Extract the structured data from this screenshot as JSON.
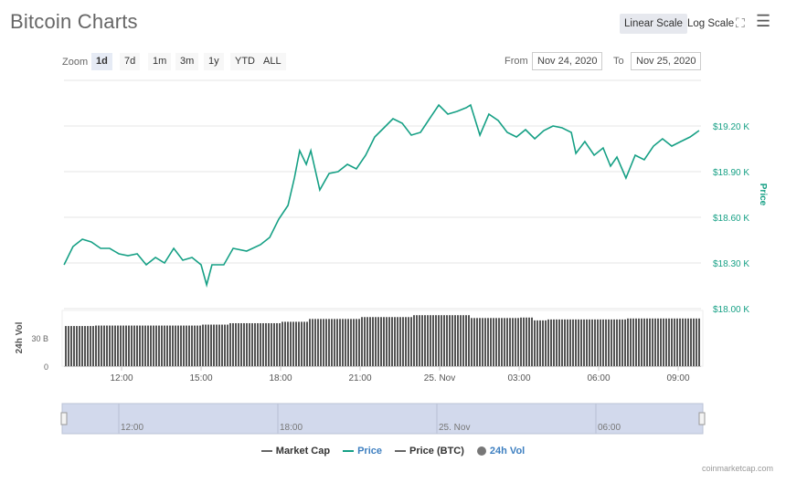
{
  "title": "Bitcoin Charts",
  "scale": {
    "linear": "Linear Scale",
    "log": "Log Scale"
  },
  "icons": {
    "fullscreen": "fullscreen-icon",
    "menu": "menu-icon"
  },
  "zoom": {
    "label": "Zoom",
    "buttons": [
      "1d",
      "7d",
      "1m",
      "3m",
      "1y",
      "YTD",
      "ALL"
    ],
    "active": "1d"
  },
  "range": {
    "from_label": "From",
    "from": "Nov 24, 2020",
    "to_label": "To",
    "to": "Nov 25, 2020"
  },
  "legend": [
    {
      "label": "Market Cap",
      "color": "#666666"
    },
    {
      "label": "Price",
      "color": "#16a085"
    },
    {
      "label": "Price (BTC)",
      "color": "#666666"
    },
    {
      "label": "24h Vol",
      "color": "#777777"
    }
  ],
  "credit": "coinmarketcap.com",
  "navigator": {
    "labels": [
      "12:00",
      "18:00",
      "25. Nov",
      "06:00"
    ]
  },
  "chart_data": {
    "type": "line",
    "x_unit": "hours since Nov 24 00:00",
    "xlim": [
      9.83,
      33.9
    ],
    "xticks": [
      {
        "h": 12,
        "label": "12:00"
      },
      {
        "h": 15,
        "label": "15:00"
      },
      {
        "h": 18,
        "label": "18:00"
      },
      {
        "h": 21,
        "label": "21:00"
      },
      {
        "h": 24,
        "label": "25. Nov"
      },
      {
        "h": 27,
        "label": "03:00"
      },
      {
        "h": 30,
        "label": "06:00"
      },
      {
        "h": 33,
        "label": "09:00"
      }
    ],
    "price": {
      "name": "Price",
      "axis_label": "Price",
      "color": "#16a085",
      "ylim": [
        18000,
        19300
      ],
      "yticks": [
        {
          "v": 18000,
          "label": "$18.00 K"
        },
        {
          "v": 18300,
          "label": "$18.30 K"
        },
        {
          "v": 18600,
          "label": "$18.60 K"
        },
        {
          "v": 18900,
          "label": "$18.90 K"
        },
        {
          "v": 19200,
          "label": "$19.20 K"
        }
      ],
      "points": [
        [
          9.83,
          18288
        ],
        [
          10.17,
          18408
        ],
        [
          10.52,
          18456
        ],
        [
          10.86,
          18438
        ],
        [
          11.21,
          18396
        ],
        [
          11.55,
          18396
        ],
        [
          11.9,
          18360
        ],
        [
          12.24,
          18348
        ],
        [
          12.59,
          18360
        ],
        [
          12.93,
          18288
        ],
        [
          13.28,
          18336
        ],
        [
          13.62,
          18300
        ],
        [
          13.97,
          18396
        ],
        [
          14.31,
          18318
        ],
        [
          14.66,
          18336
        ],
        [
          15.0,
          18288
        ],
        [
          15.21,
          18156
        ],
        [
          15.41,
          18288
        ],
        [
          15.86,
          18288
        ],
        [
          16.21,
          18396
        ],
        [
          16.72,
          18378
        ],
        [
          17.24,
          18420
        ],
        [
          17.59,
          18468
        ],
        [
          17.93,
          18588
        ],
        [
          18.28,
          18678
        ],
        [
          18.52,
          18858
        ],
        [
          18.72,
          19038
        ],
        [
          18.97,
          18948
        ],
        [
          19.14,
          19038
        ],
        [
          19.48,
          18780
        ],
        [
          19.83,
          18888
        ],
        [
          20.17,
          18900
        ],
        [
          20.52,
          18948
        ],
        [
          20.86,
          18918
        ],
        [
          21.21,
          19008
        ],
        [
          21.55,
          19128
        ],
        [
          21.9,
          19188
        ],
        [
          22.24,
          19248
        ],
        [
          22.59,
          19218
        ],
        [
          22.93,
          19140
        ],
        [
          23.28,
          19158
        ],
        [
          23.62,
          19248
        ],
        [
          23.97,
          19338
        ],
        [
          24.31,
          19278
        ],
        [
          24.66,
          19296
        ],
        [
          25.0,
          19320
        ],
        [
          25.17,
          19338
        ],
        [
          25.52,
          19140
        ],
        [
          25.86,
          19278
        ],
        [
          26.21,
          19236
        ],
        [
          26.55,
          19158
        ],
        [
          26.9,
          19128
        ],
        [
          27.24,
          19176
        ],
        [
          27.59,
          19116
        ],
        [
          27.93,
          19170
        ],
        [
          28.28,
          19200
        ],
        [
          28.62,
          19188
        ],
        [
          28.97,
          19158
        ],
        [
          29.14,
          19020
        ],
        [
          29.48,
          19098
        ],
        [
          29.83,
          19008
        ],
        [
          30.17,
          19056
        ],
        [
          30.45,
          18936
        ],
        [
          30.69,
          18996
        ],
        [
          31.03,
          18858
        ],
        [
          31.38,
          19008
        ],
        [
          31.72,
          18978
        ],
        [
          32.07,
          19068
        ],
        [
          32.41,
          19116
        ],
        [
          32.76,
          19068
        ],
        [
          33.1,
          19098
        ],
        [
          33.45,
          19128
        ],
        [
          33.79,
          19170
        ]
      ]
    },
    "volume": {
      "name": "24h Vol",
      "axis_label": "24h Vol",
      "unit": "B",
      "ylim": [
        0,
        59
      ],
      "yticks": [
        {
          "v": 0,
          "label": "0"
        },
        {
          "v": 30,
          "label": "30 B"
        }
      ],
      "steps": [
        [
          9.83,
          42.5
        ],
        [
          10.9,
          43
        ],
        [
          12,
          43
        ],
        [
          15,
          44
        ],
        [
          16,
          45.5
        ],
        [
          18,
          47
        ],
        [
          19,
          50
        ],
        [
          21,
          52
        ],
        [
          23,
          54
        ],
        [
          25.1,
          51
        ],
        [
          27,
          51.5
        ],
        [
          27.5,
          48.5
        ],
        [
          28,
          49.5
        ],
        [
          30,
          49.5
        ],
        [
          31,
          50.5
        ],
        [
          33.9,
          50.5
        ]
      ]
    }
  }
}
